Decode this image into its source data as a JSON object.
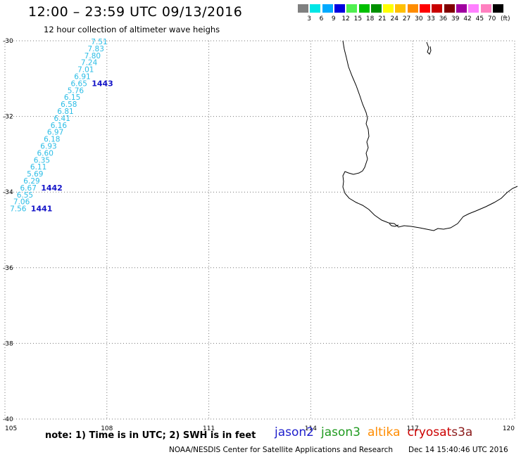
{
  "header": {
    "title": "12:00 – 23:59 UTC 09/13/2016",
    "subtitle": "12 hour collection of altimeter wave heighs"
  },
  "colorbar": {
    "colors": [
      "#808080",
      "#00e6e6",
      "#00aaff",
      "#0000e0",
      "#50f050",
      "#00c000",
      "#009000",
      "#ffff00",
      "#ffc000",
      "#ff8c00",
      "#ff0000",
      "#c80000",
      "#800000",
      "#a000a0",
      "#ff80ff",
      "#ff80c0",
      "#000000"
    ],
    "labels": [
      "3",
      "6",
      "9",
      "12",
      "15",
      "18",
      "21",
      "24",
      "27",
      "30",
      "33",
      "36",
      "39",
      "42",
      "45",
      "70"
    ],
    "unit": "(ft)"
  },
  "map": {
    "lat_ticks": [
      "-30",
      "-32",
      "-34",
      "-36",
      "-38",
      "-40"
    ],
    "lon_ticks": [
      "105",
      "108",
      "111",
      "114",
      "117",
      "120"
    ],
    "lon_range": [
      105,
      120
    ],
    "lat_range": [
      -40,
      -30
    ],
    "grid": "dotted",
    "coastline": "Southwest Australia"
  },
  "track": {
    "color": "#2bbde6",
    "values": [
      "7.51",
      "7.83",
      "7.80",
      "7.24",
      "7.01",
      "6.91",
      "6.65",
      "5.76",
      "6.15",
      "6.58",
      "6.81",
      "6.41",
      "6.16",
      "6.97",
      "6.18",
      "6.93",
      "6.60",
      "6.35",
      "6.11",
      "5.69",
      "6.29",
      "6.67",
      "6.55",
      "7.06",
      "7.56"
    ],
    "times": [
      {
        "label": "1443",
        "after_index": 6
      },
      {
        "label": "1442",
        "after_index": 21
      },
      {
        "label": "1441",
        "after_index": 24
      }
    ],
    "time_color": "#1414c8"
  },
  "footer": {
    "note": "note: 1) Time is in UTC; 2) SWH is in feet",
    "satellites": [
      {
        "name": "jason2",
        "color": "#1e1ecc"
      },
      {
        "name": "jason3",
        "color": "#1f9a1f"
      },
      {
        "name": "altika",
        "color": "#ff8c00"
      },
      {
        "name": "cryosat",
        "color": "#cc0000"
      },
      {
        "name": "s3a",
        "color": "#8a1a1a"
      }
    ],
    "credit": "NOAA/NESDIS Center for Satellite Applications and Research",
    "timestamp": "Dec 14 15:40:46 UTC 2016"
  }
}
